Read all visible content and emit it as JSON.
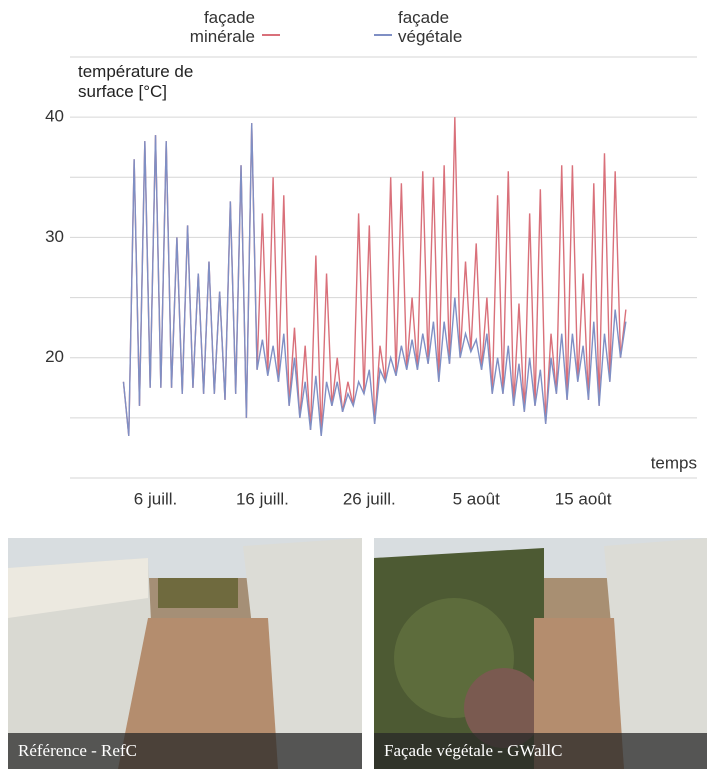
{
  "chart_data": {
    "type": "line",
    "y_label": "température de surface [°C]",
    "x_label": "temps",
    "x": [
      3,
      3.5,
      4,
      4.5,
      5,
      5.5,
      6,
      6.5,
      7,
      7.5,
      8,
      8.5,
      9,
      9.5,
      10,
      10.5,
      11,
      11.5,
      12,
      12.5,
      13,
      13.5,
      14,
      14.5,
      15,
      15.5,
      16,
      16.5,
      17,
      17.5,
      18,
      18.5,
      19,
      19.5,
      20,
      20.5,
      21,
      21.5,
      22,
      22.5,
      23,
      23.5,
      24,
      24.5,
      25,
      25.5,
      26,
      26.5,
      27,
      27.5,
      28,
      28.5,
      29,
      29.5,
      30,
      30.5,
      31,
      31.5,
      32,
      32.5,
      33,
      33.5,
      34,
      34.5,
      35,
      35.5,
      36,
      36.5,
      37,
      37.5,
      38,
      38.5,
      39,
      39.5,
      40,
      40.5,
      41,
      41.5,
      42,
      42.5,
      43,
      43.5,
      44,
      44.5,
      45,
      45.5,
      46,
      46.5,
      47,
      47.5,
      48,
      48.5,
      49,
      49.5,
      50
    ],
    "series": [
      {
        "name": "façade minérale",
        "color": "#d9707a",
        "values": [
          18,
          13.5,
          36.5,
          16,
          38,
          17.5,
          38.5,
          17.5,
          38,
          17.5,
          30,
          17,
          31,
          17.5,
          27,
          17,
          28,
          17,
          25.5,
          16.5,
          33,
          17,
          36,
          15,
          39.5,
          19,
          32,
          18.5,
          35,
          18,
          33.5,
          16,
          22.5,
          15,
          21,
          14,
          28.5,
          13.5,
          27,
          16,
          20,
          15.5,
          18,
          16,
          32,
          17,
          31,
          14.5,
          21,
          18,
          35,
          18.5,
          34.5,
          19,
          25,
          19,
          35.5,
          19.5,
          35,
          18,
          36,
          19.5,
          40,
          20,
          28,
          20.5,
          29.5,
          19,
          25,
          17,
          33.5,
          17,
          35.5,
          16,
          24.5,
          15.5,
          32,
          16,
          34,
          14.5,
          22,
          17,
          36,
          16.5,
          36,
          18,
          27,
          16.5,
          34.5,
          16,
          37,
          18,
          35.5,
          20,
          24
        ]
      },
      {
        "name": "façade végétale",
        "color": "#7f8fc4",
        "values": [
          18,
          13.5,
          36.5,
          16,
          38,
          17.5,
          38.5,
          17.5,
          38,
          17.5,
          30,
          17,
          31,
          17.5,
          27,
          17,
          28,
          17,
          25.5,
          16.5,
          33,
          17,
          36,
          15,
          39.5,
          19,
          21.5,
          18.5,
          21,
          18,
          22,
          16,
          20,
          15,
          18,
          14,
          18.5,
          13.5,
          18,
          16,
          18,
          15.5,
          17,
          16,
          18,
          17,
          19,
          14.5,
          19,
          18,
          20,
          18.5,
          21,
          19,
          21.5,
          19,
          22,
          19.5,
          23,
          18,
          23,
          19.5,
          25,
          20,
          22,
          20.5,
          21.5,
          19,
          22,
          17,
          20,
          17,
          21,
          16,
          19.5,
          15.5,
          20,
          16,
          19,
          14.5,
          20,
          17,
          22,
          16.5,
          22,
          18,
          21,
          16.5,
          23,
          16,
          22,
          18,
          24,
          20,
          23
        ]
      }
    ],
    "xlim": [
      -2,
      56
    ],
    "xticks": [
      {
        "value": 6,
        "label": "6 juill."
      },
      {
        "value": 16,
        "label": "16 juill."
      },
      {
        "value": 26,
        "label": "26 juill."
      },
      {
        "value": 36,
        "label": "5 août"
      },
      {
        "value": 46,
        "label": "15 août"
      }
    ],
    "ylim": [
      10,
      45
    ],
    "yticks": [
      20,
      30,
      40
    ],
    "ygrid": [
      15,
      20,
      25,
      30,
      35,
      40,
      45
    ]
  },
  "photos": [
    {
      "caption": "Référence - RefC"
    },
    {
      "caption": "Façade végétale - GWallC"
    }
  ]
}
